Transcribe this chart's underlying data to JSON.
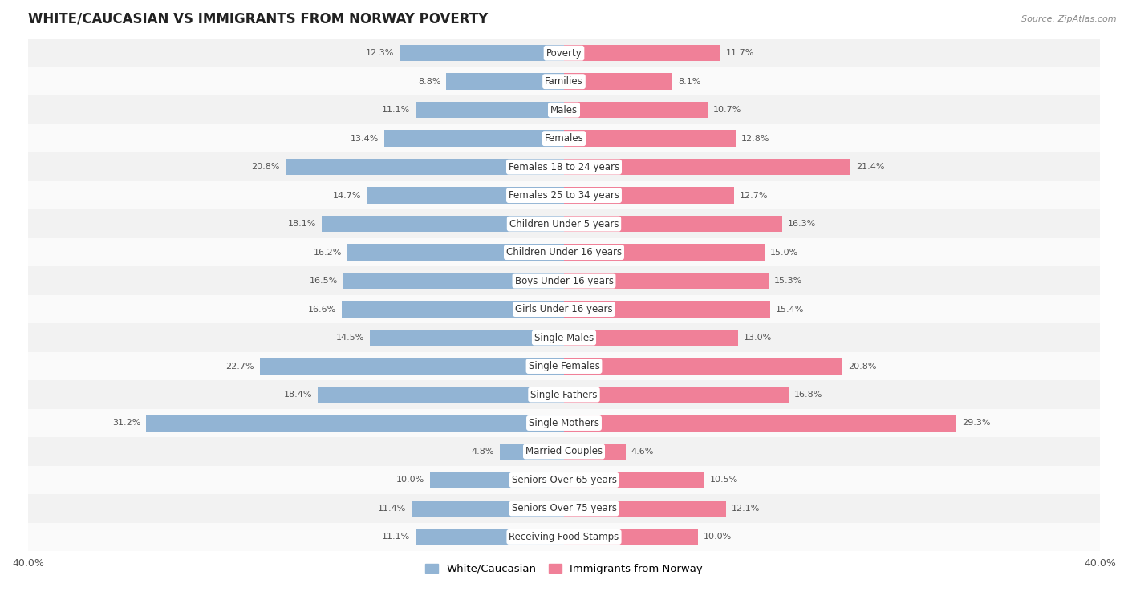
{
  "title": "WHITE/CAUCASIAN VS IMMIGRANTS FROM NORWAY POVERTY",
  "source": "Source: ZipAtlas.com",
  "categories": [
    "Poverty",
    "Families",
    "Males",
    "Females",
    "Females 18 to 24 years",
    "Females 25 to 34 years",
    "Children Under 5 years",
    "Children Under 16 years",
    "Boys Under 16 years",
    "Girls Under 16 years",
    "Single Males",
    "Single Females",
    "Single Fathers",
    "Single Mothers",
    "Married Couples",
    "Seniors Over 65 years",
    "Seniors Over 75 years",
    "Receiving Food Stamps"
  ],
  "white_values": [
    12.3,
    8.8,
    11.1,
    13.4,
    20.8,
    14.7,
    18.1,
    16.2,
    16.5,
    16.6,
    14.5,
    22.7,
    18.4,
    31.2,
    4.8,
    10.0,
    11.4,
    11.1
  ],
  "norway_values": [
    11.7,
    8.1,
    10.7,
    12.8,
    21.4,
    12.7,
    16.3,
    15.0,
    15.3,
    15.4,
    13.0,
    20.8,
    16.8,
    29.3,
    4.6,
    10.5,
    12.1,
    10.0
  ],
  "white_color": "#92b4d4",
  "norway_color": "#f08098",
  "row_bg_even": "#f2f2f2",
  "row_bg_odd": "#fafafa",
  "xlim": 40.0,
  "legend_white": "White/Caucasian",
  "legend_norway": "Immigrants from Norway",
  "bar_height": 0.58,
  "title_fontsize": 12,
  "label_fontsize": 8.5,
  "value_fontsize": 8,
  "axis_label_fontsize": 9
}
